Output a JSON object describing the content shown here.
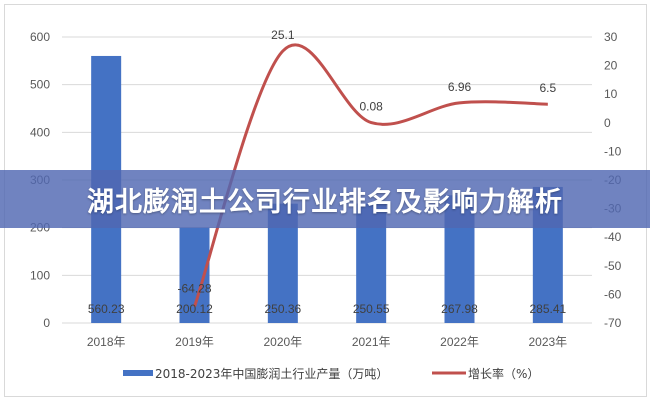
{
  "banner": {
    "title": "湖北膨润土公司行业排名及影响力解析"
  },
  "chart_data": {
    "type": "bar+line",
    "categories": [
      "2018年",
      "2019年",
      "2020年",
      "2021年",
      "2022年",
      "2023年"
    ],
    "series": [
      {
        "name": "2018-2023年中国膨润土行业产量（万吨）",
        "type": "bar",
        "axis": "left",
        "color": "#4472c4",
        "values": [
          560.23,
          200.12,
          250.36,
          250.55,
          267.98,
          285.41
        ],
        "labels": [
          "560.23",
          "200.12",
          "250.36",
          "250.55",
          "267.98",
          "285.41"
        ]
      },
      {
        "name": "增长率（%）",
        "type": "line",
        "axis": "right",
        "color": "#c0504d",
        "values": [
          null,
          -64.28,
          25.1,
          0.08,
          6.96,
          6.5
        ],
        "labels": [
          "",
          "-64.28",
          "25.1",
          "0.08",
          "6.96",
          "6.5"
        ]
      }
    ],
    "y_left": {
      "range": [
        0,
        600
      ],
      "ticks": [
        "0",
        "100",
        "200",
        "300",
        "400",
        "500",
        "600"
      ]
    },
    "y_right": {
      "range": [
        -70,
        30
      ],
      "ticks": [
        "30",
        "20",
        "10",
        "0",
        "-10",
        "-20",
        "-30",
        "-40",
        "-50",
        "-60",
        "-70"
      ]
    },
    "grid": true,
    "legend": "bottom"
  }
}
